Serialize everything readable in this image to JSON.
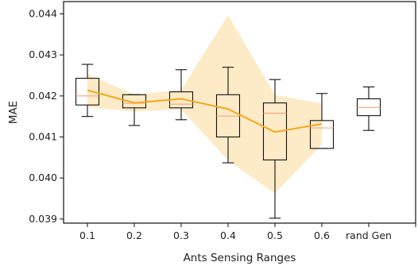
{
  "chart_data": {
    "type": "box",
    "title": "",
    "xlabel": "Ants Sensing Ranges",
    "ylabel": "MAE",
    "categories": [
      "0.1",
      "0.2",
      "0.3",
      "0.4",
      "0.5",
      "0.6",
      "rand Gen"
    ],
    "ylim": [
      0.0389,
      0.0443
    ],
    "yticks": [
      "0.039",
      "0.040",
      "0.041",
      "0.042",
      "0.043",
      "0.044"
    ],
    "grid": false,
    "boxes": [
      {
        "category": "0.1",
        "whisker_low": 0.0415,
        "q1": 0.04178,
        "median": 0.042,
        "q3": 0.04243,
        "whisker_high": 0.04277
      },
      {
        "category": "0.2",
        "whisker_low": 0.04128,
        "q1": 0.04171,
        "median": 0.04182,
        "q3": 0.04203,
        "whisker_high": 0.04203
      },
      {
        "category": "0.3",
        "whisker_low": 0.04142,
        "q1": 0.04171,
        "median": 0.0418,
        "q3": 0.0421,
        "whisker_high": 0.04264
      },
      {
        "category": "0.4",
        "whisker_low": 0.04037,
        "q1": 0.041,
        "median": 0.04151,
        "q3": 0.04203,
        "whisker_high": 0.0427
      },
      {
        "category": "0.5",
        "whisker_low": 0.03902,
        "q1": 0.04044,
        "median": 0.04158,
        "q3": 0.04183,
        "whisker_high": 0.0424
      },
      {
        "category": "0.6",
        "whisker_low": 0.04072,
        "q1": 0.04072,
        "median": 0.04122,
        "q3": 0.0414,
        "whisker_high": 0.04206
      },
      {
        "category": "rand Gen",
        "whisker_low": 0.04116,
        "q1": 0.04152,
        "median": 0.04172,
        "q3": 0.04193,
        "whisker_high": 0.04222
      }
    ],
    "mean_line": {
      "categories": [
        "0.1",
        "0.2",
        "0.3",
        "0.4",
        "0.5",
        "0.6"
      ],
      "values": [
        0.04214,
        0.04183,
        0.04193,
        0.04168,
        0.04112,
        0.04132
      ],
      "band_low": [
        0.04172,
        0.04162,
        0.04167,
        0.04043,
        0.03962,
        0.04082
      ],
      "band_high": [
        0.04254,
        0.04203,
        0.04215,
        0.04397,
        0.04202,
        0.04182
      ]
    },
    "colors": {
      "mean_line": "#f5a71a",
      "band": "#fdebc8",
      "median": "#f5a27a",
      "box": "#111111"
    }
  }
}
